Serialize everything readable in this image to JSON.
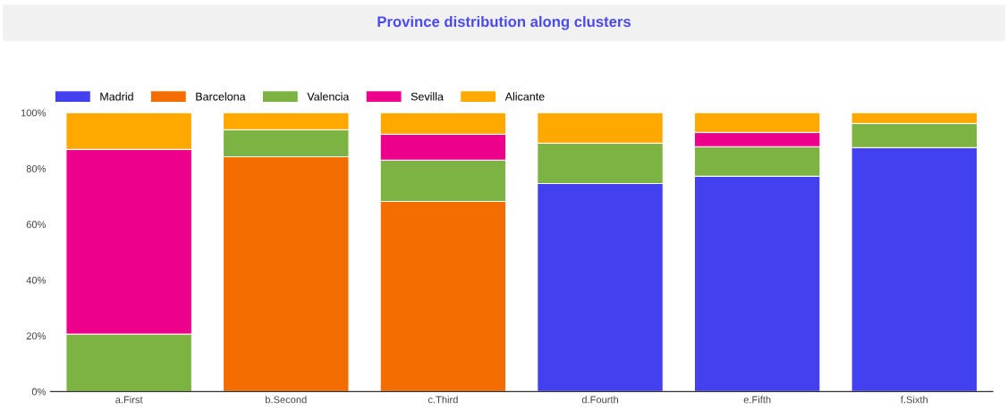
{
  "chart_data": {
    "type": "bar",
    "title": "Province distribution along clusters",
    "stacked": true,
    "categories": [
      "a.First",
      "b.Second",
      "c.Third",
      "d.Fourth",
      "e.Fifth",
      "f.Sixth"
    ],
    "series": [
      {
        "name": "Madrid",
        "color": "#4340f0",
        "values": [
          0,
          0,
          0,
          74.6,
          77.2,
          87.5
        ]
      },
      {
        "name": "Barcelona",
        "color": "#f46d00",
        "values": [
          0,
          84.2,
          68.2,
          0,
          0,
          0
        ]
      },
      {
        "name": "Valencia",
        "color": "#7cb342",
        "values": [
          20.6,
          9.7,
          14.8,
          14.5,
          10.6,
          8.6
        ]
      },
      {
        "name": "Sevilla",
        "color": "#ec008c",
        "values": [
          66.2,
          0,
          9.3,
          0,
          5.1,
          0
        ]
      },
      {
        "name": "Alicante",
        "color": "#ffa800",
        "values": [
          13.2,
          6.1,
          7.7,
          10.9,
          7.1,
          3.9
        ]
      }
    ],
    "ylim": [
      0,
      100
    ],
    "yticks": [
      {
        "value": 0,
        "label": "0%"
      },
      {
        "value": 20,
        "label": "20%"
      },
      {
        "value": 40,
        "label": "40%"
      },
      {
        "value": 60,
        "label": "60%"
      },
      {
        "value": 80,
        "label": "80%"
      },
      {
        "value": 100,
        "label": "100%"
      }
    ],
    "grid": false,
    "legend": "top left"
  }
}
